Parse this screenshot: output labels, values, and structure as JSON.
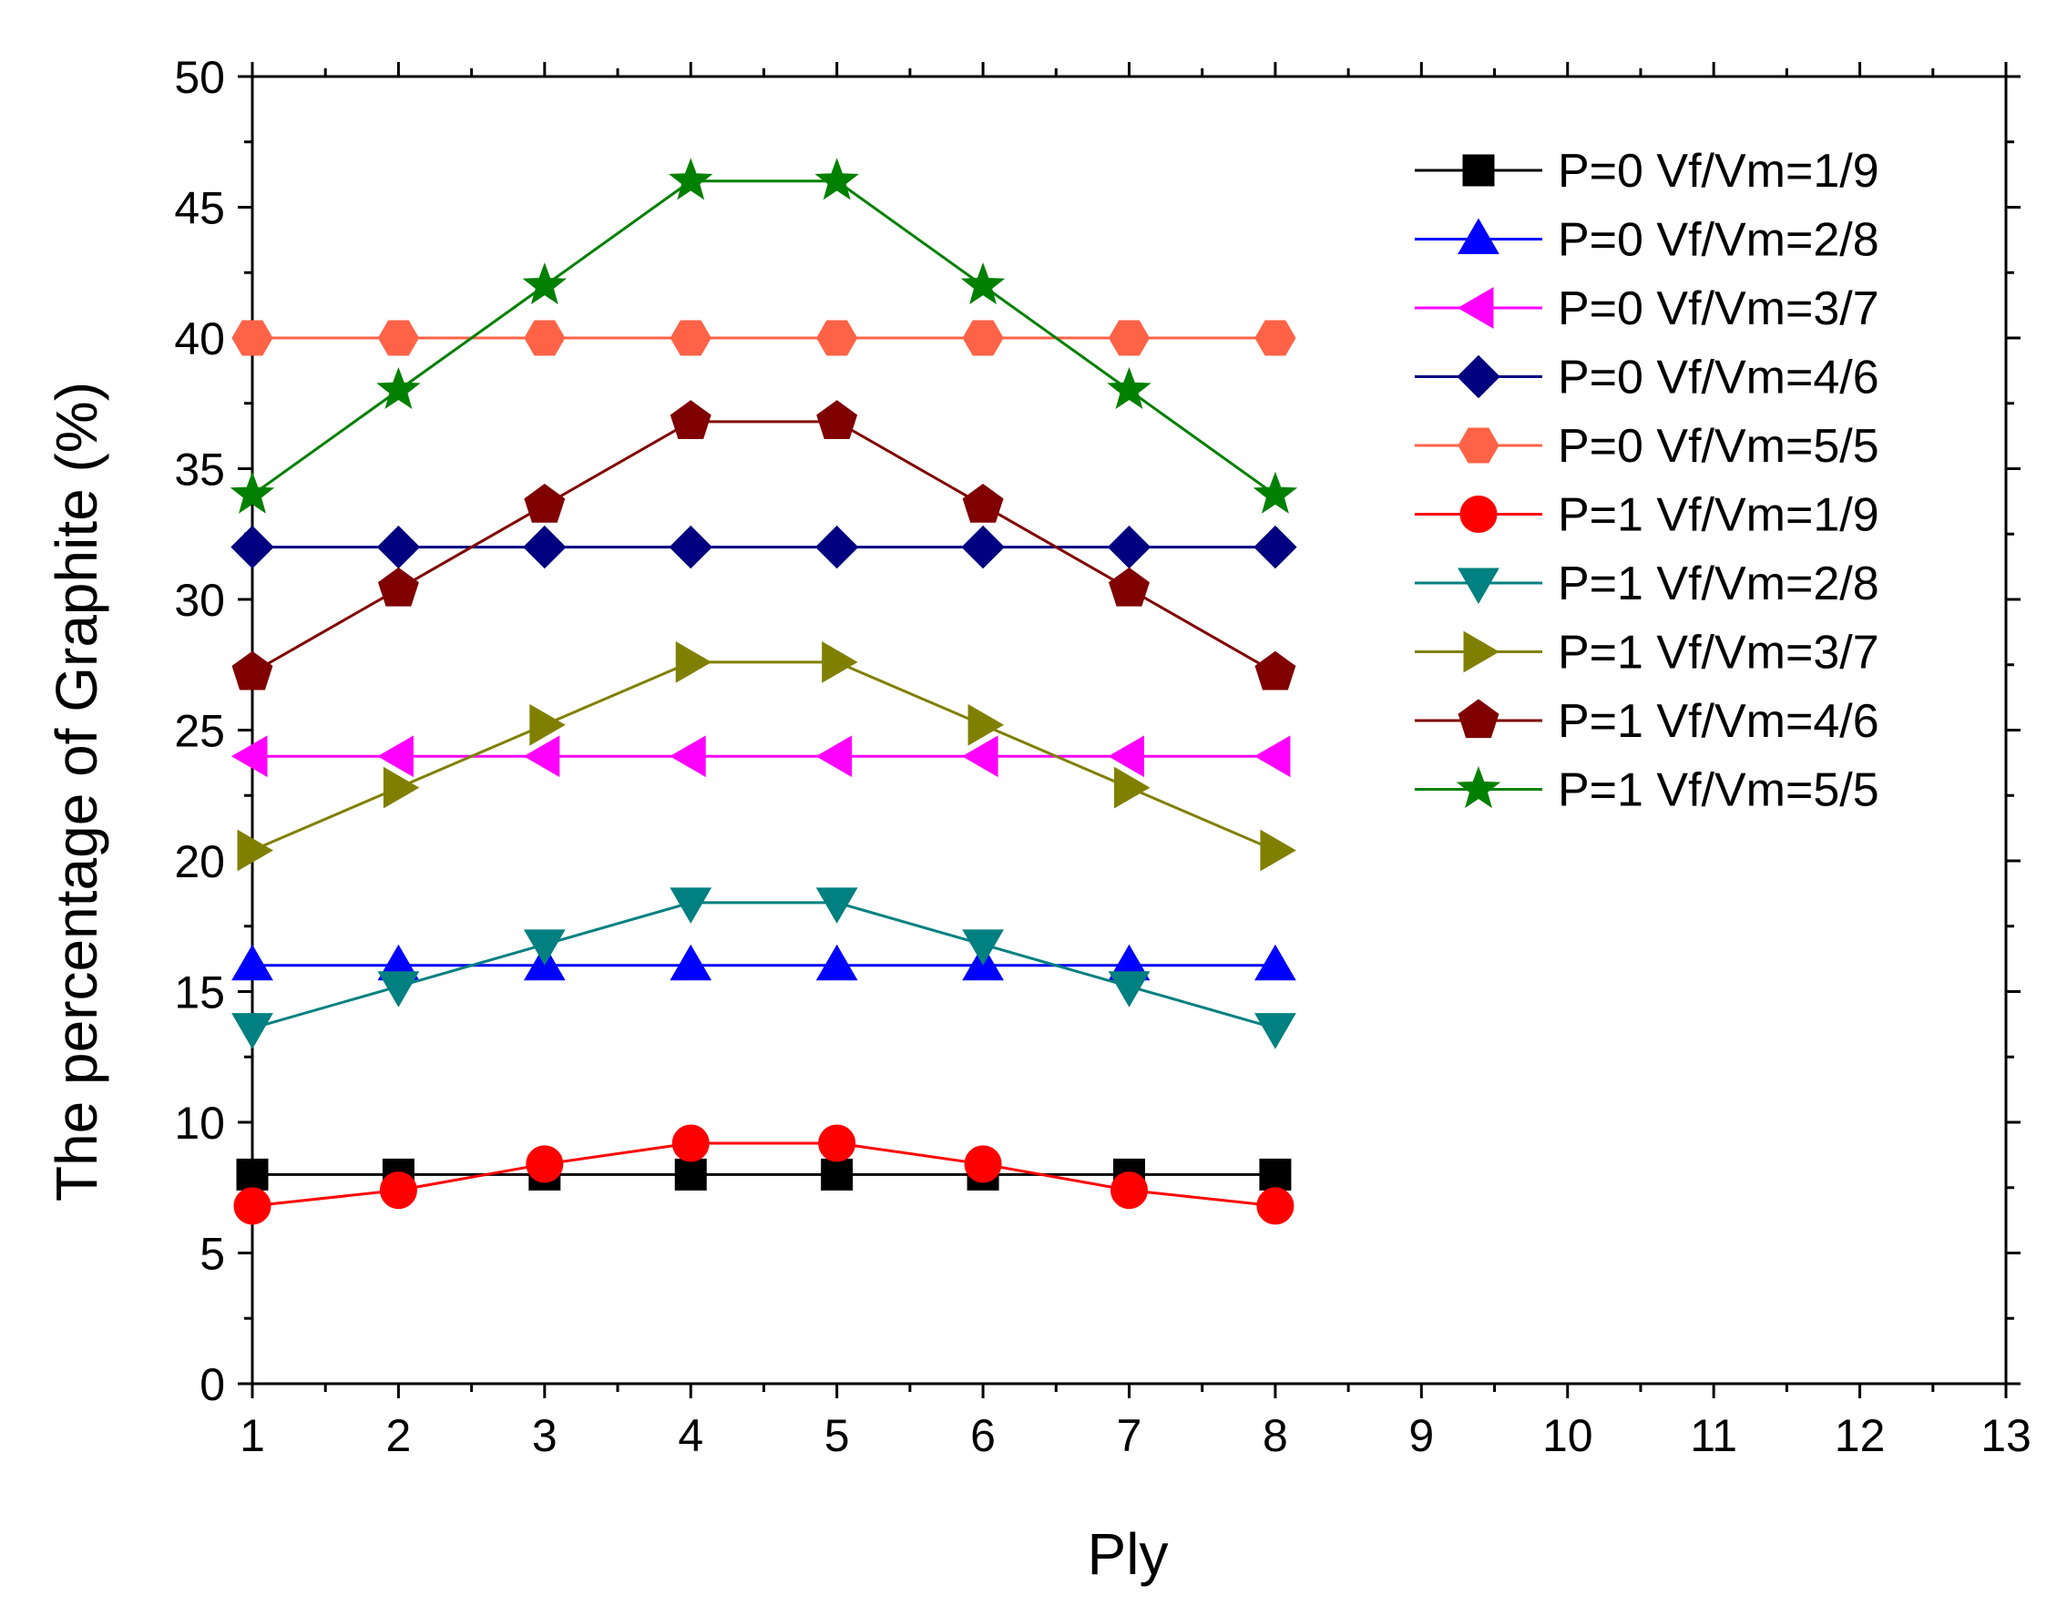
{
  "chart_data": {
    "type": "line",
    "title": "",
    "xlabel": "Ply",
    "ylabel": "The percentage of Graphite (%)",
    "xlim": [
      1,
      13
    ],
    "ylim": [
      0,
      50
    ],
    "xticks": [
      1,
      2,
      3,
      4,
      5,
      6,
      7,
      8,
      9,
      10,
      11,
      12,
      13
    ],
    "yticks": [
      0,
      5,
      10,
      15,
      20,
      25,
      30,
      35,
      40,
      45,
      50
    ],
    "legend_position": "top-right",
    "x": [
      1,
      2,
      3,
      4,
      5,
      6,
      7,
      8
    ],
    "series": [
      {
        "name": "P=0 Vf/Vm=1/9",
        "color": "#000000",
        "marker": "square",
        "values": [
          8,
          8,
          8,
          8,
          8,
          8,
          8,
          8
        ]
      },
      {
        "name": "P=0 Vf/Vm=2/8",
        "color": "#0000FF",
        "marker": "triangle-up",
        "values": [
          16,
          16,
          16,
          16,
          16,
          16,
          16,
          16
        ]
      },
      {
        "name": "P=0 Vf/Vm=3/7",
        "color": "#FF00FF",
        "marker": "triangle-left",
        "values": [
          24,
          24,
          24,
          24,
          24,
          24,
          24,
          24
        ]
      },
      {
        "name": "P=0 Vf/Vm=4/6",
        "color": "#000080",
        "marker": "diamond",
        "values": [
          32,
          32,
          32,
          32,
          32,
          32,
          32,
          32
        ]
      },
      {
        "name": "P=0 Vf/Vm=5/5",
        "color": "#FF6347",
        "marker": "hexagon",
        "values": [
          40,
          40,
          40,
          40,
          40,
          40,
          40,
          40
        ]
      },
      {
        "name": "P=1 Vf/Vm=1/9",
        "color": "#FF0000",
        "marker": "circle",
        "values": [
          6.8,
          7.4,
          8.4,
          9.2,
          9.2,
          8.4,
          7.4,
          6.8
        ]
      },
      {
        "name": "P=1 Vf/Vm=2/8",
        "color": "#008080",
        "marker": "triangle-down",
        "values": [
          13.6,
          15.2,
          16.8,
          18.4,
          18.4,
          16.8,
          15.2,
          13.6
        ]
      },
      {
        "name": "P=1 Vf/Vm=3/7",
        "color": "#808000",
        "marker": "triangle-right",
        "values": [
          20.4,
          22.8,
          25.2,
          27.6,
          27.6,
          25.2,
          22.8,
          20.4
        ]
      },
      {
        "name": "P=1 Vf/Vm=4/6",
        "color": "#800000",
        "marker": "pentagon",
        "values": [
          27.2,
          30.4,
          33.6,
          36.8,
          36.8,
          33.6,
          30.4,
          27.2
        ]
      },
      {
        "name": "P=1 Vf/Vm=5/5",
        "color": "#008000",
        "marker": "star",
        "values": [
          34,
          38,
          42,
          46,
          46,
          42,
          38,
          34
        ]
      }
    ]
  }
}
